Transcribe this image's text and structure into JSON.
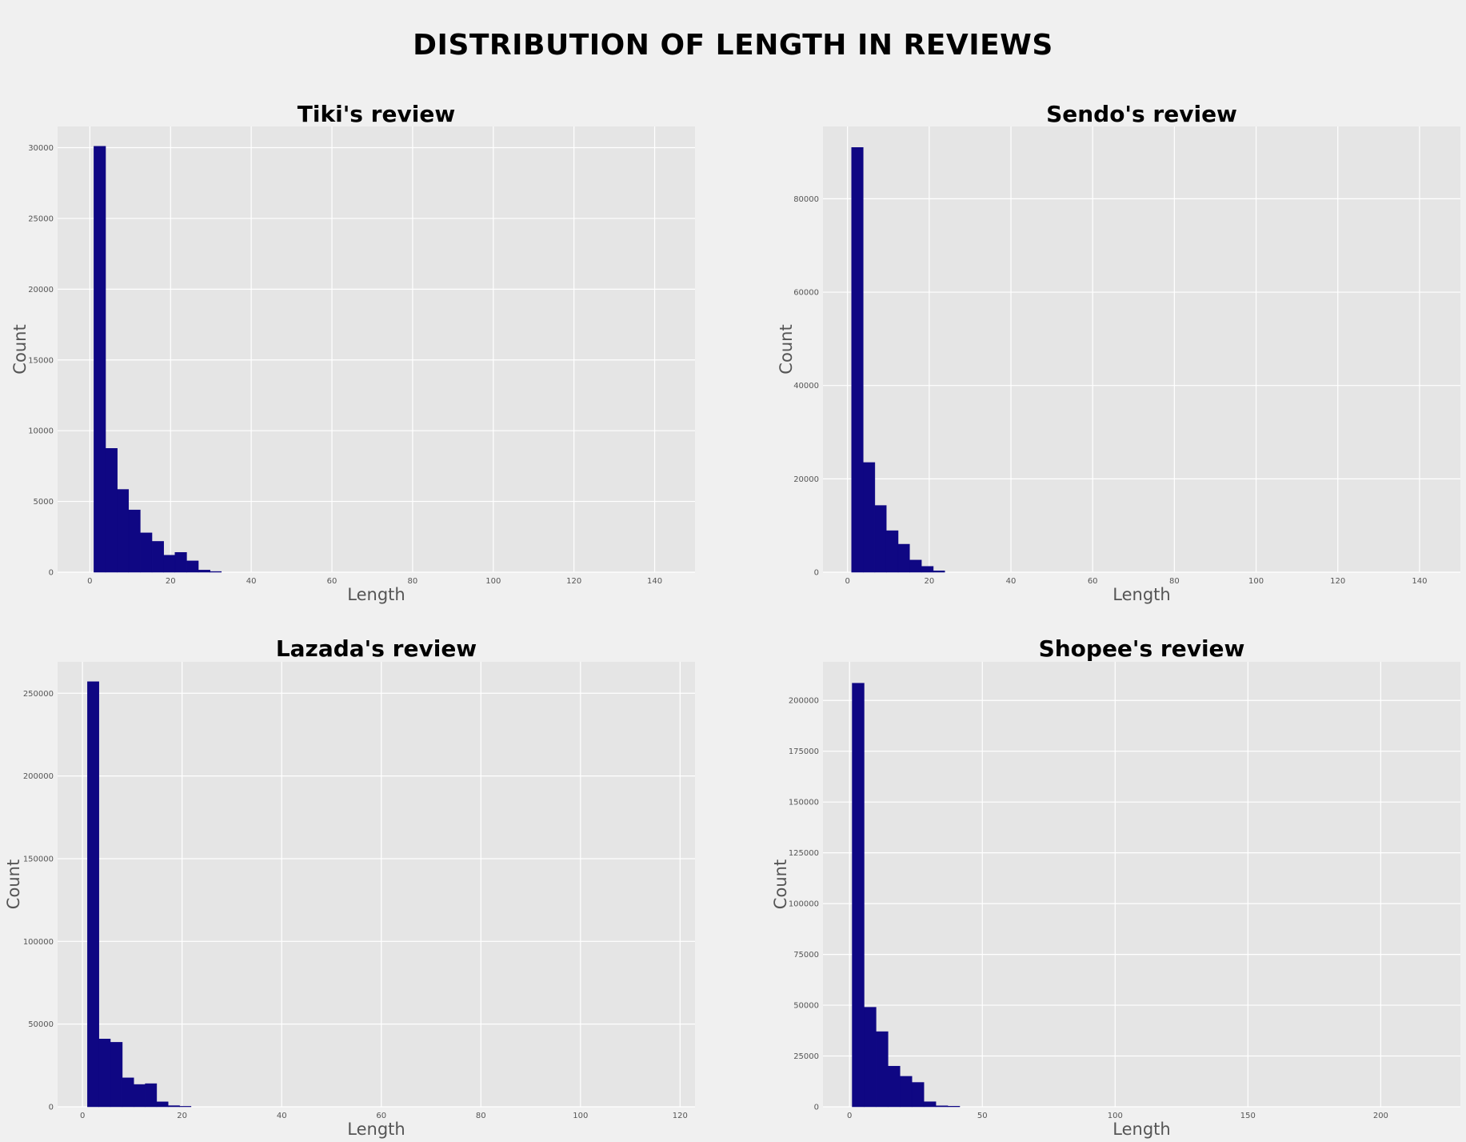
{
  "suptitle": "DISTRIBUTION OF LENGTH IN REVIEWS",
  "colors": {
    "bar": "#0f0783",
    "axes_bg": "#e5e5e5",
    "figure_bg": "#f0f0f0",
    "grid": "#ffffff",
    "label": "#555555"
  },
  "chart_data": [
    {
      "type": "bar",
      "title": "Tiki's review",
      "xlabel": "Length",
      "ylabel": "Count",
      "xlim": [
        -8,
        150
      ],
      "ylim": [
        0,
        31500
      ],
      "xticks": [
        0,
        20,
        40,
        60,
        80,
        100,
        120,
        140
      ],
      "yticks": [
        0,
        5000,
        10000,
        15000,
        20000,
        25000,
        30000
      ],
      "grid": true,
      "bins": [
        {
          "x0": 1,
          "x1": 3.9,
          "count": 30100
        },
        {
          "x0": 3.9,
          "x1": 6.8,
          "count": 8750
        },
        {
          "x0": 6.8,
          "x1": 9.6,
          "count": 5850
        },
        {
          "x0": 9.6,
          "x1": 12.5,
          "count": 4400
        },
        {
          "x0": 12.5,
          "x1": 15.4,
          "count": 2780
        },
        {
          "x0": 15.4,
          "x1": 18.3,
          "count": 2180
        },
        {
          "x0": 18.3,
          "x1": 21.1,
          "count": 1200
        },
        {
          "x0": 21.1,
          "x1": 24.0,
          "count": 1400
        },
        {
          "x0": 24.0,
          "x1": 26.9,
          "count": 800
        },
        {
          "x0": 26.9,
          "x1": 29.8,
          "count": 150
        },
        {
          "x0": 29.8,
          "x1": 32.6,
          "count": 50
        }
      ]
    },
    {
      "type": "bar",
      "title": "Sendo's review",
      "xlabel": "Length",
      "ylabel": "Count",
      "xlim": [
        -6,
        150
      ],
      "ylim": [
        0,
        95500
      ],
      "xticks": [
        0,
        20,
        40,
        60,
        80,
        100,
        120,
        140
      ],
      "yticks": [
        0,
        20000,
        40000,
        60000,
        80000
      ],
      "grid": true,
      "bins": [
        {
          "x0": 1,
          "x1": 3.85,
          "count": 91000
        },
        {
          "x0": 3.85,
          "x1": 6.7,
          "count": 23500
        },
        {
          "x0": 6.7,
          "x1": 9.5,
          "count": 14300
        },
        {
          "x0": 9.5,
          "x1": 12.4,
          "count": 8900
        },
        {
          "x0": 12.4,
          "x1": 15.2,
          "count": 6000
        },
        {
          "x0": 15.2,
          "x1": 18.1,
          "count": 2600
        },
        {
          "x0": 18.1,
          "x1": 21.0,
          "count": 1250
        },
        {
          "x0": 21.0,
          "x1": 23.8,
          "count": 300
        }
      ]
    },
    {
      "type": "bar",
      "title": "Lazada's review",
      "xlabel": "Length",
      "ylabel": "Count",
      "xlim": [
        -5,
        123
      ],
      "ylim": [
        0,
        269000
      ],
      "xticks": [
        0,
        20,
        40,
        60,
        80,
        100,
        120
      ],
      "yticks": [
        0,
        50000,
        100000,
        150000,
        200000,
        250000
      ],
      "grid": true,
      "bins": [
        {
          "x0": 1,
          "x1": 3.3,
          "count": 257000
        },
        {
          "x0": 3.3,
          "x1": 5.6,
          "count": 41000
        },
        {
          "x0": 5.6,
          "x1": 8.0,
          "count": 39000
        },
        {
          "x0": 8.0,
          "x1": 10.3,
          "count": 17500
        },
        {
          "x0": 10.3,
          "x1": 12.6,
          "count": 13500
        },
        {
          "x0": 12.6,
          "x1": 14.9,
          "count": 14000
        },
        {
          "x0": 14.9,
          "x1": 17.2,
          "count": 3000
        },
        {
          "x0": 17.2,
          "x1": 19.5,
          "count": 700
        },
        {
          "x0": 19.5,
          "x1": 21.8,
          "count": 300
        }
      ]
    },
    {
      "type": "bar",
      "title": "Shopee's review",
      "xlabel": "Length",
      "ylabel": "Count",
      "xlim": [
        -10,
        230
      ],
      "ylim": [
        0,
        219000
      ],
      "xticks": [
        0,
        50,
        100,
        150,
        200
      ],
      "yticks": [
        0,
        25000,
        50000,
        75000,
        100000,
        125000,
        150000,
        175000,
        200000
      ],
      "grid": true,
      "bins": [
        {
          "x0": 1,
          "x1": 5.5,
          "count": 208500
        },
        {
          "x0": 5.5,
          "x1": 10.0,
          "count": 49000
        },
        {
          "x0": 10.0,
          "x1": 14.5,
          "count": 37000
        },
        {
          "x0": 14.5,
          "x1": 19.0,
          "count": 20000
        },
        {
          "x0": 19.0,
          "x1": 23.5,
          "count": 15000
        },
        {
          "x0": 23.5,
          "x1": 28.0,
          "count": 12000
        },
        {
          "x0": 28.0,
          "x1": 32.5,
          "count": 2500
        },
        {
          "x0": 32.5,
          "x1": 37.0,
          "count": 500
        },
        {
          "x0": 37.0,
          "x1": 41.5,
          "count": 300
        }
      ]
    }
  ]
}
